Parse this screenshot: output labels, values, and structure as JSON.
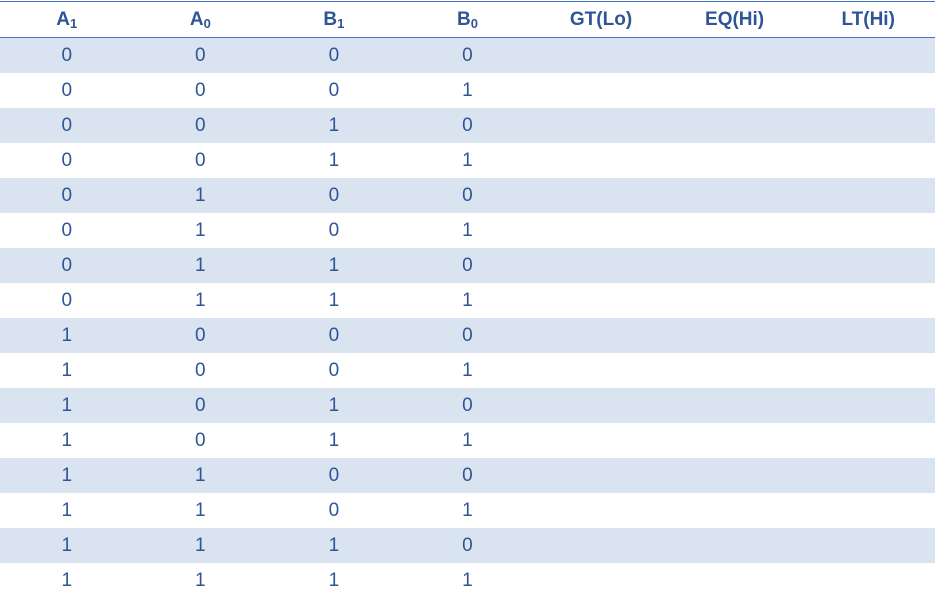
{
  "headers": [
    {
      "main": "A",
      "sub": "1"
    },
    {
      "main": "A",
      "sub": "0"
    },
    {
      "main": "B",
      "sub": "1"
    },
    {
      "main": "B",
      "sub": "0"
    },
    {
      "main": "GT(Lo)",
      "sub": ""
    },
    {
      "main": "EQ(Hi)",
      "sub": ""
    },
    {
      "main": "LT(Hi)",
      "sub": ""
    }
  ],
  "rows": [
    [
      "0",
      "0",
      "0",
      "0",
      "",
      "",
      ""
    ],
    [
      "0",
      "0",
      "0",
      "1",
      "",
      "",
      ""
    ],
    [
      "0",
      "0",
      "1",
      "0",
      "",
      "",
      ""
    ],
    [
      "0",
      "0",
      "1",
      "1",
      "",
      "",
      ""
    ],
    [
      "0",
      "1",
      "0",
      "0",
      "",
      "",
      ""
    ],
    [
      "0",
      "1",
      "0",
      "1",
      "",
      "",
      ""
    ],
    [
      "0",
      "1",
      "1",
      "0",
      "",
      "",
      ""
    ],
    [
      "0",
      "1",
      "1",
      "1",
      "",
      "",
      ""
    ],
    [
      "1",
      "0",
      "0",
      "0",
      "",
      "",
      ""
    ],
    [
      "1",
      "0",
      "0",
      "1",
      "",
      "",
      ""
    ],
    [
      "1",
      "0",
      "1",
      "0",
      "",
      "",
      ""
    ],
    [
      "1",
      "0",
      "1",
      "1",
      "",
      "",
      ""
    ],
    [
      "1",
      "1",
      "0",
      "0",
      "",
      "",
      ""
    ],
    [
      "1",
      "1",
      "0",
      "1",
      "",
      "",
      ""
    ],
    [
      "1",
      "1",
      "1",
      "0",
      "",
      "",
      ""
    ],
    [
      "1",
      "1",
      "1",
      "1",
      "",
      "",
      ""
    ]
  ],
  "colors": {
    "text": "#2f5597",
    "band": "#dae3f0",
    "rule": "#4472c4"
  }
}
